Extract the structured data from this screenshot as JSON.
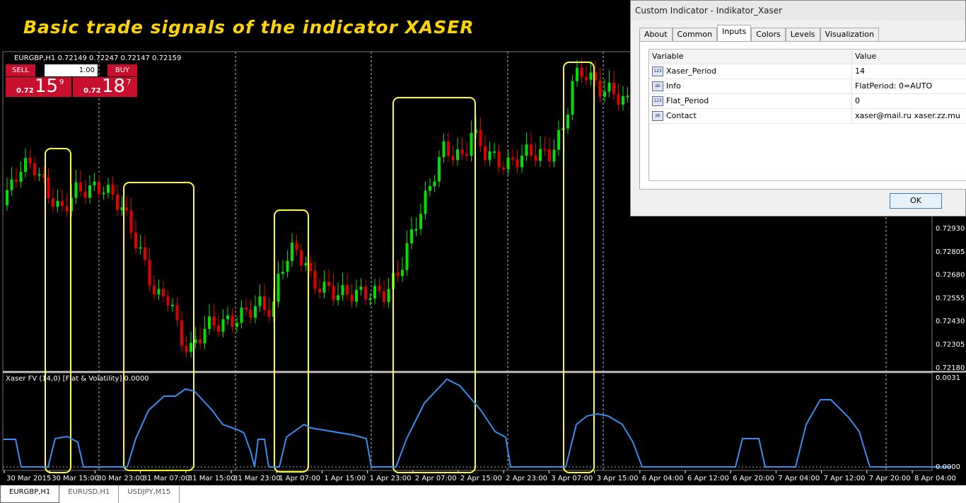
{
  "title": "Basic trade signals of the indicator XASER",
  "chart": {
    "header": "EURGBP,H1  0.72149 0.72247 0.72147 0.72159",
    "trade_panel": {
      "sell": "SELL",
      "buy": "BUY",
      "lot": "1.00",
      "sell_prefix": "0.72",
      "sell_big": "15",
      "sell_sup": "9",
      "buy_prefix": "0.72",
      "buy_big": "18",
      "buy_sup": "7"
    },
    "price_axis": [
      "0.72930",
      "0.72805",
      "0.72680",
      "0.72555",
      "0.72430",
      "0.72305",
      "0.72180"
    ],
    "indicator_label": "Xaser FV (14,0) [Flat & Volatility] 0.0000",
    "indicator_axis": [
      "0.0031",
      "0.0000"
    ],
    "time_axis": [
      "30 Mar 2015",
      "30 Mar 15:00",
      "30 Mar 23:00",
      "31 Mar 07:00",
      "31 Mar 15:00",
      "31 Mar 23:00",
      "1 Apr 07:00",
      "1 Apr 15:00",
      "1 Apr 23:00",
      "2 Apr 07:00",
      "2 Apr 15:00",
      "2 Apr 23:00",
      "3 Apr 07:00",
      "3 Apr 15:00",
      "6 Apr 04:00",
      "6 Apr 12:00",
      "6 Apr 20:00",
      "7 Apr 04:00",
      "7 Apr 12:00",
      "7 Apr 20:00",
      "8 Apr 04:00"
    ]
  },
  "tabs": [
    "EURGBP,H1",
    "EURUSD,H1",
    "USDJPY,M15"
  ],
  "dialog": {
    "title": "Custom Indicator - Indikator_Xaser",
    "tabs": [
      "About",
      "Common",
      "Inputs",
      "Colors",
      "Levels",
      "Visualization"
    ],
    "columns": [
      "Variable",
      "Value"
    ],
    "rows": [
      {
        "icon": "123",
        "variable": "Xaser_Period",
        "value": "14"
      },
      {
        "icon": "ab",
        "variable": "Info",
        "value": "FlatPeriod: 0=AUTO"
      },
      {
        "icon": "123",
        "variable": "Flat_Period",
        "value": "0"
      },
      {
        "icon": "ab",
        "variable": "Contact",
        "value": "xaser@mail.ru    xaser.zz.mu"
      }
    ],
    "ok": "OK"
  }
}
